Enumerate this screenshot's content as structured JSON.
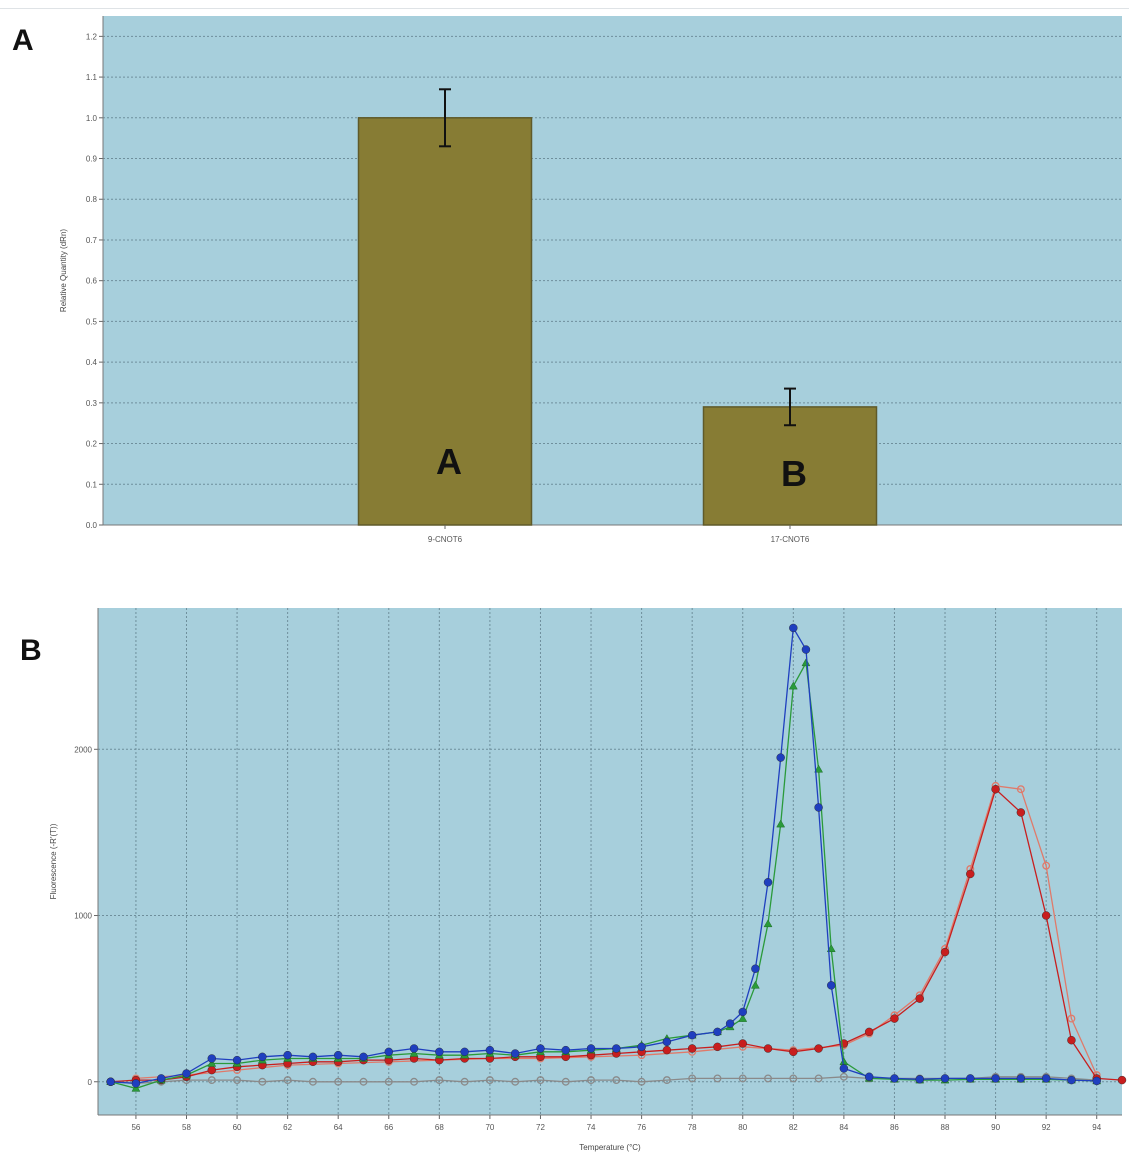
{
  "panels": {
    "a_letter": "A",
    "b_letter": "B"
  },
  "colors": {
    "plot_bg": "#a7cfdc",
    "bar_fill": "#877c34",
    "bar_stroke": "#5f5a2a",
    "grid": "#6f8f9c",
    "series_blue": "#1f3fbf",
    "series_green": "#2a9a3a",
    "series_red": "#c81e1e",
    "series_gray": "#8a8a8a"
  },
  "chart_data": [
    {
      "type": "bar",
      "ylabel": "Relative Quantity (dRn)",
      "xlabel": "",
      "ylim": [
        0,
        1.25
      ],
      "yticks": [
        "0.0",
        "0.1",
        "0.2",
        "0.3",
        "0.4",
        "0.5",
        "0.6",
        "0.7",
        "0.8",
        "0.9",
        "1.0",
        "1.1",
        "1.2"
      ],
      "categories": [
        "9-CNOT6",
        "17-CNOT6"
      ],
      "values": [
        1.0,
        0.29
      ],
      "errors": [
        0.07,
        0.045
      ],
      "bar_labels": [
        "A",
        "B"
      ],
      "grid": true
    },
    {
      "type": "line",
      "xlabel": "Temperature (°C)",
      "ylabel": "Fluorescence (-R'(T))",
      "xlim": [
        54.5,
        95
      ],
      "ylim": [
        -200,
        2850
      ],
      "xticks": [
        "56",
        "58",
        "60",
        "62",
        "64",
        "66",
        "68",
        "70",
        "72",
        "74",
        "76",
        "78",
        "80",
        "82",
        "84",
        "86",
        "88",
        "90",
        "92",
        "94"
      ],
      "yticks": [
        "0",
        "1000",
        "2000"
      ],
      "grid": true,
      "series": [
        {
          "color": "blue",
          "marker": "circle",
          "points": [
            [
              55,
              0
            ],
            [
              56,
              -10
            ],
            [
              57,
              20
            ],
            [
              58,
              50
            ],
            [
              59,
              140
            ],
            [
              60,
              130
            ],
            [
              61,
              150
            ],
            [
              62,
              160
            ],
            [
              63,
              150
            ],
            [
              64,
              160
            ],
            [
              65,
              150
            ],
            [
              66,
              180
            ],
            [
              67,
              200
            ],
            [
              68,
              180
            ],
            [
              69,
              180
            ],
            [
              70,
              190
            ],
            [
              71,
              170
            ],
            [
              72,
              200
            ],
            [
              73,
              190
            ],
            [
              74,
              200
            ],
            [
              75,
              200
            ],
            [
              76,
              210
            ],
            [
              77,
              240
            ],
            [
              78,
              280
            ],
            [
              79,
              300
            ],
            [
              79.5,
              350
            ],
            [
              80,
              420
            ],
            [
              80.5,
              680
            ],
            [
              81,
              1200
            ],
            [
              81.5,
              1950
            ],
            [
              82,
              2730
            ],
            [
              82.5,
              2600
            ],
            [
              83,
              1650
            ],
            [
              83.5,
              580
            ],
            [
              84,
              80
            ],
            [
              85,
              30
            ],
            [
              86,
              20
            ],
            [
              87,
              15
            ],
            [
              88,
              20
            ],
            [
              89,
              20
            ],
            [
              90,
              20
            ],
            [
              91,
              20
            ],
            [
              92,
              20
            ],
            [
              93,
              10
            ],
            [
              94,
              5
            ]
          ]
        },
        {
          "color": "green",
          "marker": "triangle",
          "points": [
            [
              55,
              0
            ],
            [
              56,
              -40
            ],
            [
              57,
              10
            ],
            [
              58,
              40
            ],
            [
              59,
              110
            ],
            [
              60,
              110
            ],
            [
              61,
              130
            ],
            [
              62,
              140
            ],
            [
              63,
              140
            ],
            [
              64,
              140
            ],
            [
              65,
              140
            ],
            [
              66,
              160
            ],
            [
              67,
              170
            ],
            [
              68,
              160
            ],
            [
              69,
              160
            ],
            [
              70,
              170
            ],
            [
              71,
              160
            ],
            [
              72,
              180
            ],
            [
              73,
              180
            ],
            [
              74,
              190
            ],
            [
              75,
              200
            ],
            [
              76,
              220
            ],
            [
              77,
              260
            ],
            [
              78,
              280
            ],
            [
              79,
              300
            ],
            [
              79.5,
              330
            ],
            [
              80,
              380
            ],
            [
              80.5,
              580
            ],
            [
              81,
              950
            ],
            [
              81.5,
              1550
            ],
            [
              82,
              2380
            ],
            [
              82.5,
              2520
            ],
            [
              83,
              1880
            ],
            [
              83.5,
              800
            ],
            [
              84,
              120
            ],
            [
              85,
              20
            ],
            [
              86,
              15
            ],
            [
              87,
              10
            ],
            [
              88,
              10
            ],
            [
              89,
              15
            ],
            [
              90,
              15
            ],
            [
              91,
              15
            ],
            [
              92,
              15
            ],
            [
              93,
              10
            ],
            [
              94,
              5
            ]
          ]
        },
        {
          "color": "red",
          "marker": "circle",
          "points": [
            [
              55,
              0
            ],
            [
              56,
              10
            ],
            [
              57,
              10
            ],
            [
              58,
              30
            ],
            [
              59,
              70
            ],
            [
              60,
              90
            ],
            [
              61,
              100
            ],
            [
              62,
              110
            ],
            [
              63,
              120
            ],
            [
              64,
              120
            ],
            [
              65,
              130
            ],
            [
              66,
              130
            ],
            [
              67,
              140
            ],
            [
              68,
              130
            ],
            [
              69,
              140
            ],
            [
              70,
              140
            ],
            [
              71,
              150
            ],
            [
              72,
              150
            ],
            [
              73,
              150
            ],
            [
              74,
              160
            ],
            [
              75,
              170
            ],
            [
              76,
              180
            ],
            [
              77,
              190
            ],
            [
              78,
              200
            ],
            [
              79,
              210
            ],
            [
              80,
              230
            ],
            [
              81,
              200
            ],
            [
              82,
              180
            ],
            [
              83,
              200
            ],
            [
              84,
              230
            ],
            [
              85,
              300
            ],
            [
              86,
              380
            ],
            [
              87,
              500
            ],
            [
              88,
              780
            ],
            [
              89,
              1250
            ],
            [
              90,
              1760
            ],
            [
              91,
              1620
            ],
            [
              92,
              1000
            ],
            [
              93,
              250
            ],
            [
              94,
              20
            ],
            [
              95,
              10
            ]
          ]
        },
        {
          "color": "gray",
          "marker": "circle",
          "points": [
            [
              55,
              0
            ],
            [
              56,
              -10
            ],
            [
              57,
              0
            ],
            [
              58,
              10
            ],
            [
              59,
              10
            ],
            [
              60,
              10
            ],
            [
              61,
              0
            ],
            [
              62,
              10
            ],
            [
              63,
              0
            ],
            [
              64,
              0
            ],
            [
              65,
              0
            ],
            [
              66,
              0
            ],
            [
              67,
              0
            ],
            [
              68,
              10
            ],
            [
              69,
              0
            ],
            [
              70,
              10
            ],
            [
              71,
              0
            ],
            [
              72,
              10
            ],
            [
              73,
              0
            ],
            [
              74,
              10
            ],
            [
              75,
              10
            ],
            [
              76,
              0
            ],
            [
              77,
              10
            ],
            [
              78,
              20
            ],
            [
              79,
              20
            ],
            [
              80,
              20
            ],
            [
              81,
              20
            ],
            [
              82,
              20
            ],
            [
              83,
              20
            ],
            [
              84,
              30
            ],
            [
              85,
              20
            ],
            [
              86,
              20
            ],
            [
              87,
              20
            ],
            [
              88,
              20
            ],
            [
              89,
              20
            ],
            [
              90,
              30
            ],
            [
              91,
              30
            ],
            [
              92,
              30
            ],
            [
              93,
              20
            ],
            [
              94,
              10
            ]
          ]
        },
        {
          "color": "salmon",
          "marker": "circle",
          "points": [
            [
              56,
              20
            ],
            [
              58,
              40
            ],
            [
              60,
              70
            ],
            [
              62,
              100
            ],
            [
              64,
              110
            ],
            [
              66,
              120
            ],
            [
              68,
              130
            ],
            [
              70,
              140
            ],
            [
              72,
              140
            ],
            [
              74,
              150
            ],
            [
              76,
              160
            ],
            [
              78,
              180
            ],
            [
              80,
              210
            ],
            [
              82,
              190
            ],
            [
              84,
              220
            ],
            [
              85,
              290
            ],
            [
              86,
              400
            ],
            [
              87,
              520
            ],
            [
              88,
              800
            ],
            [
              89,
              1280
            ],
            [
              90,
              1780
            ],
            [
              91,
              1760
            ],
            [
              92,
              1300
            ],
            [
              93,
              380
            ],
            [
              94,
              40
            ]
          ]
        }
      ]
    }
  ]
}
